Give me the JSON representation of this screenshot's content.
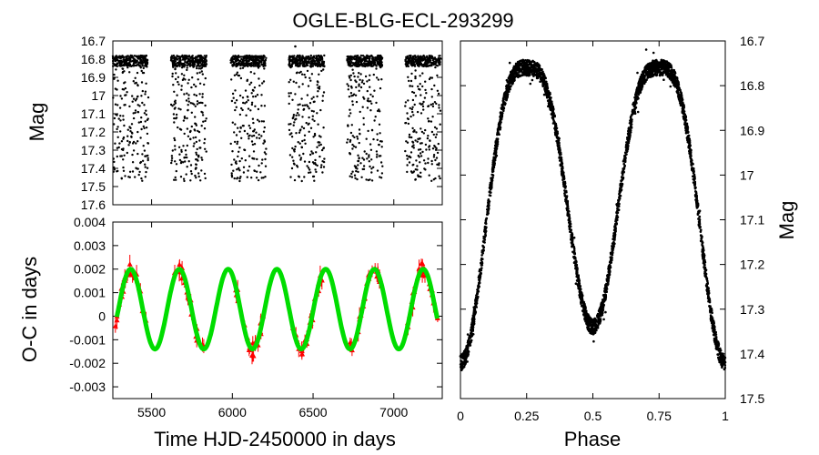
{
  "title": "OGLE-BLG-ECL-293299",
  "chart_data": [
    {
      "id": "lightcurve",
      "type": "scatter",
      "xlabel": "",
      "ylabel": "Mag",
      "xlim": [
        5260,
        7300
      ],
      "ylim": [
        17.6,
        16.7
      ],
      "y_inverted": true,
      "yticks": [
        16.7,
        16.8,
        16.9,
        17,
        17.1,
        17.2,
        17.3,
        17.4,
        17.5,
        17.6
      ],
      "ytick_labels": [
        "16.7",
        "16.8",
        "16.9",
        "17",
        "17.1",
        "17.2",
        "17.3",
        "17.4",
        "17.5",
        "17.6"
      ],
      "xticks": [
        5500,
        6000,
        6500,
        7000
      ],
      "point_color": "#000000",
      "seasons": [
        {
          "start": 5260,
          "end": 5480
        },
        {
          "start": 5620,
          "end": 5840
        },
        {
          "start": 5990,
          "end": 6210
        },
        {
          "start": 6350,
          "end": 6570
        },
        {
          "start": 6710,
          "end": 6930
        },
        {
          "start": 7070,
          "end": 7290
        }
      ],
      "mag_max_brightness": 16.78,
      "mag_min_brightness": 17.42
    },
    {
      "id": "oc",
      "type": "scatter",
      "xlabel": "Time HJD-2450000 in days",
      "ylabel": "O-C in days",
      "xlim": [
        5260,
        7300
      ],
      "ylim": [
        -0.0035,
        0.004
      ],
      "xticks": [
        5500,
        6000,
        6500,
        7000
      ],
      "xtick_labels": [
        "5500",
        "6000",
        "6500",
        "7000"
      ],
      "yticks": [
        -0.003,
        -0.002,
        -0.001,
        0,
        0.001,
        0.002,
        0.003,
        0.004
      ],
      "ytick_labels": [
        "-0.003",
        "-0.002",
        "-0.001",
        "0",
        "0.001",
        "0.002",
        "0.003",
        "0.004"
      ],
      "fit": {
        "amplitude": 0.0017,
        "offset": 0.0003,
        "period": 302,
        "peak_at": 5370,
        "color": "#00dd00"
      },
      "points_color": "#ff0000"
    },
    {
      "id": "phase",
      "type": "scatter",
      "xlabel": "Phase",
      "ylabel": "Mag",
      "xlim": [
        0,
        1
      ],
      "ylim": [
        17.5,
        16.7
      ],
      "y_inverted": true,
      "xticks": [
        0,
        0.25,
        0.5,
        0.75,
        1
      ],
      "xtick_labels": [
        "0",
        "0.25",
        "0.5",
        "0.75",
        "1"
      ],
      "yticks": [
        16.7,
        16.8,
        16.9,
        17,
        17.1,
        17.2,
        17.3,
        17.4,
        17.5
      ],
      "ytick_labels": [
        "16.7",
        "16.8",
        "16.9",
        "17",
        "17.1",
        "17.2",
        "17.3",
        "17.4",
        "17.5"
      ],
      "point_color": "#000000",
      "max_mag": 16.76,
      "min_primary": 17.42,
      "min_secondary": 17.34
    }
  ]
}
